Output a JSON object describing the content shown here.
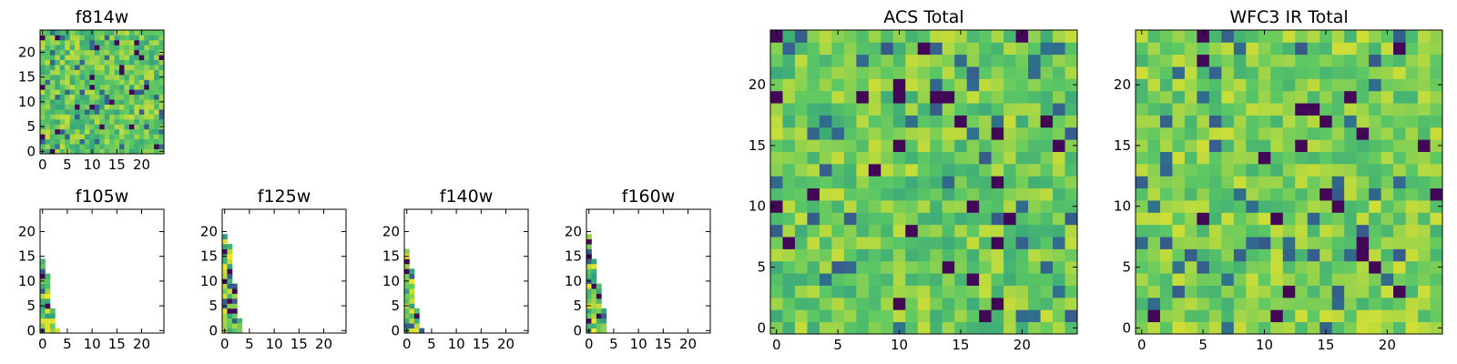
{
  "chart_data": [
    {
      "type": "heatmap",
      "title": "f814w",
      "grid_size": 25,
      "xticks": [
        0,
        5,
        10,
        15,
        20
      ],
      "yticks": [
        0,
        5,
        10,
        15,
        20
      ],
      "xlim": [
        0,
        24
      ],
      "ylim": [
        0,
        24
      ],
      "colormap": "viridis",
      "colors": [
        "#440154",
        "#3b528b",
        "#21908d",
        "#5dc863",
        "#fde725"
      ],
      "value_range": [
        0,
        1
      ],
      "fill": "noise",
      "seed": 814,
      "mean": 0.7,
      "spread": 0.32
    },
    {
      "type": "heatmap",
      "title": "f105w",
      "grid_size": 25,
      "xticks": [
        0,
        5,
        10,
        15,
        20
      ],
      "yticks": [
        0,
        5,
        10,
        15,
        20
      ],
      "xlim": [
        0,
        24
      ],
      "ylim": [
        0,
        24
      ],
      "colormap": "viridis",
      "value_range": [
        0,
        1
      ],
      "fill": "column_heights",
      "column_heights": [
        15,
        12,
        5,
        1
      ],
      "seed": 105
    },
    {
      "type": "heatmap",
      "title": "f125w",
      "grid_size": 25,
      "xticks": [
        0,
        5,
        10,
        15,
        20
      ],
      "yticks": [
        0,
        5,
        10,
        15,
        20
      ],
      "xlim": [
        0,
        24
      ],
      "ylim": [
        0,
        24
      ],
      "colormap": "viridis",
      "value_range": [
        0,
        1
      ],
      "fill": "column_heights",
      "column_heights": [
        20,
        18,
        10,
        3
      ],
      "seed": 125
    },
    {
      "type": "heatmap",
      "title": "f140w",
      "grid_size": 25,
      "xticks": [
        0,
        5,
        10,
        15,
        20
      ],
      "yticks": [
        0,
        5,
        10,
        15,
        20
      ],
      "xlim": [
        0,
        24
      ],
      "ylim": [
        0,
        24
      ],
      "colormap": "viridis",
      "value_range": [
        0,
        1
      ],
      "fill": "column_heights",
      "column_heights": [
        17,
        13,
        5,
        1
      ],
      "seed": 140
    },
    {
      "type": "heatmap",
      "title": "f160w",
      "grid_size": 25,
      "xticks": [
        0,
        5,
        10,
        15,
        20
      ],
      "yticks": [
        0,
        5,
        10,
        15,
        20
      ],
      "xlim": [
        0,
        24
      ],
      "ylim": [
        0,
        24
      ],
      "colormap": "viridis",
      "value_range": [
        0,
        1
      ],
      "fill": "column_heights",
      "column_heights": [
        20,
        15,
        10,
        5
      ],
      "seed": 160
    },
    {
      "type": "heatmap",
      "title": "ACS Total",
      "grid_size": 25,
      "xticks": [
        0,
        5,
        10,
        15,
        20
      ],
      "yticks": [
        0,
        5,
        10,
        15,
        20
      ],
      "xlim": [
        0,
        24
      ],
      "ylim": [
        0,
        24
      ],
      "colormap": "viridis",
      "value_range": [
        0,
        1
      ],
      "fill": "noise",
      "seed": 2501,
      "mean": 0.72,
      "spread": 0.3
    },
    {
      "type": "heatmap",
      "title": "WFC3 IR Total",
      "grid_size": 25,
      "xticks": [
        0,
        5,
        10,
        15,
        20
      ],
      "yticks": [
        0,
        5,
        10,
        15,
        20
      ],
      "xlim": [
        0,
        24
      ],
      "ylim": [
        0,
        24
      ],
      "colormap": "viridis",
      "value_range": [
        0,
        1
      ],
      "fill": "noise",
      "seed": 3301,
      "mean": 0.74,
      "spread": 0.28
    }
  ]
}
